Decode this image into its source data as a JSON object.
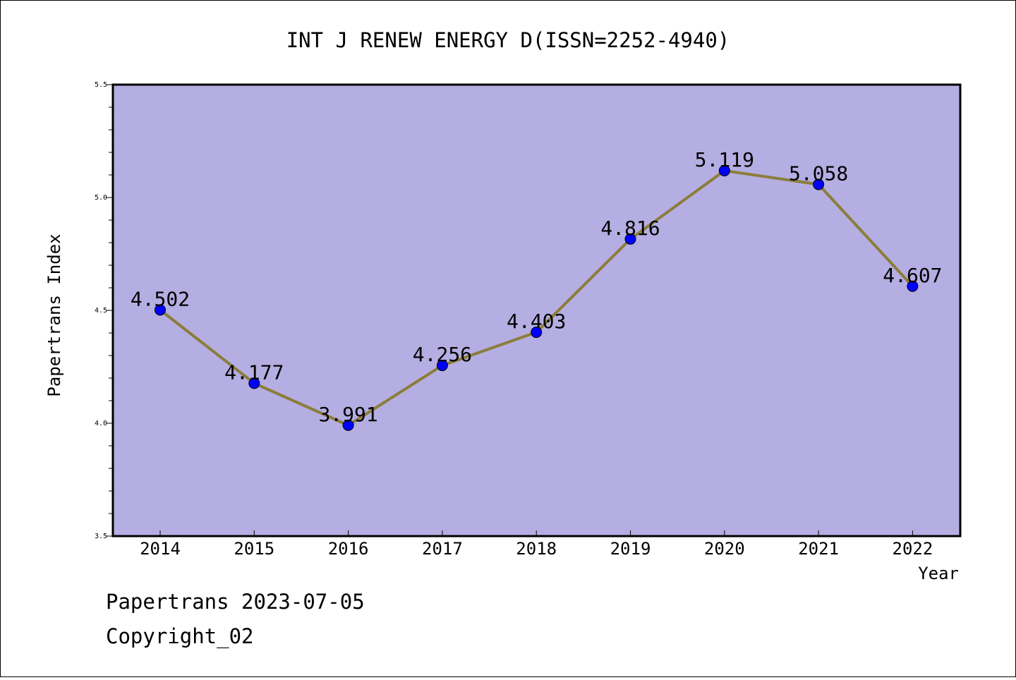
{
  "chart_data": {
    "type": "line",
    "title": "INT J RENEW ENERGY D(ISSN=2252-4940)",
    "xlabel": "Year",
    "ylabel": "Papertrans Index",
    "categories": [
      "2014",
      "2015",
      "2016",
      "2017",
      "2018",
      "2019",
      "2020",
      "2021",
      "2022"
    ],
    "values": [
      4.502,
      4.177,
      3.991,
      4.256,
      4.403,
      4.816,
      5.119,
      5.058,
      4.607
    ],
    "labels": [
      "4.502",
      "4.177",
      "3.991",
      "4.256",
      "4.403",
      "4.816",
      "5.119",
      "5.058",
      "4.607"
    ],
    "ylim": [
      3.5,
      5.5
    ],
    "yticks": [
      "3.5",
      "4.0",
      "4.5",
      "5.0",
      "5.5"
    ],
    "grid": false,
    "colors": {
      "plot_background": "#b5aee2",
      "line": "#8b7d3a",
      "marker": "#0000ff"
    }
  },
  "footer": {
    "line1": "Papertrans 2023-07-05",
    "line2": "Copyright_02"
  }
}
